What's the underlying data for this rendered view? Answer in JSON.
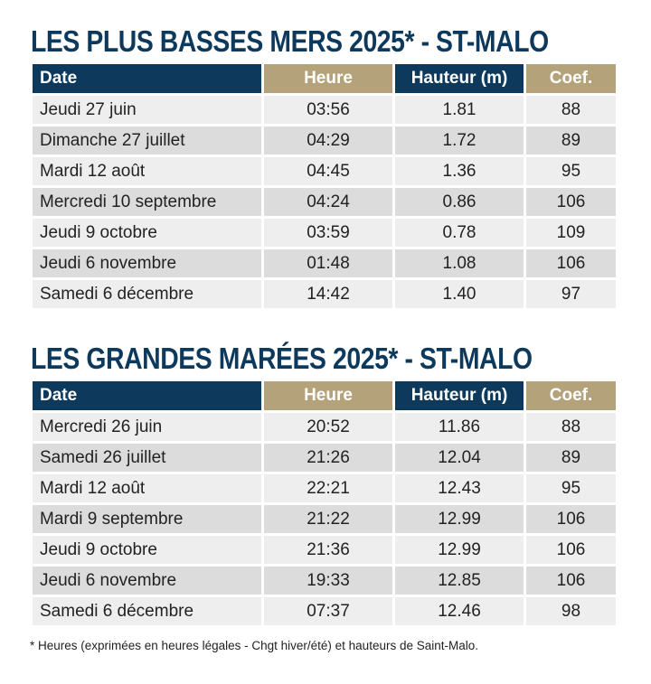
{
  "low_tides": {
    "title": "LES PLUS BASSES MERS 2025* - ST-MALO",
    "headers": {
      "date": "Date",
      "heure": "Heure",
      "hauteur": "Hauteur (m)",
      "coef": "Coef."
    },
    "rows": [
      {
        "date": "Jeudi 27 juin",
        "heure": "03:56",
        "hauteur": "1.81",
        "coef": "88"
      },
      {
        "date": "Dimanche 27 juillet",
        "heure": "04:29",
        "hauteur": "1.72",
        "coef": "89"
      },
      {
        "date": "Mardi 12 août",
        "heure": "04:45",
        "hauteur": "1.36",
        "coef": "95"
      },
      {
        "date": "Mercredi 10 septembre",
        "heure": "04:24",
        "hauteur": "0.86",
        "coef": "106"
      },
      {
        "date": "Jeudi 9 octobre",
        "heure": "03:59",
        "hauteur": "0.78",
        "coef": "109"
      },
      {
        "date": "Jeudi 6 novembre",
        "heure": "01:48",
        "hauteur": "1.08",
        "coef": "106"
      },
      {
        "date": "Samedi 6 décembre",
        "heure": "14:42",
        "hauteur": "1.40",
        "coef": "97"
      }
    ]
  },
  "high_tides": {
    "title": "LES GRANDES MARÉES 2025* - ST-MALO",
    "headers": {
      "date": "Date",
      "heure": "Heure",
      "hauteur": "Hauteur (m)",
      "coef": "Coef."
    },
    "rows": [
      {
        "date": "Mercredi 26 juin",
        "heure": "20:52",
        "hauteur": "11.86",
        "coef": "88"
      },
      {
        "date": "Samedi 26 juillet",
        "heure": "21:26",
        "hauteur": "12.04",
        "coef": "89"
      },
      {
        "date": "Mardi 12 août",
        "heure": "22:21",
        "hauteur": "12.43",
        "coef": "95"
      },
      {
        "date": "Mardi 9 septembre",
        "heure": "21:22",
        "hauteur": "12.99",
        "coef": "106"
      },
      {
        "date": "Jeudi 9 octobre",
        "heure": "21:36",
        "hauteur": "12.99",
        "coef": "106"
      },
      {
        "date": "Jeudi 6 novembre",
        "heure": "19:33",
        "hauteur": "12.85",
        "coef": "106"
      },
      {
        "date": "Samedi 6 décembre",
        "heure": "07:37",
        "hauteur": "12.46",
        "coef": "98"
      }
    ]
  },
  "footnote": "* Heures (exprimées en heures légales - Chgt hiver/été) et hauteurs de Saint-Malo.",
  "colors": {
    "navy": "#0d3a5c",
    "gold": "#b4a27a",
    "row_light": "#eeeeee",
    "row_dark": "#dcdcdc"
  }
}
